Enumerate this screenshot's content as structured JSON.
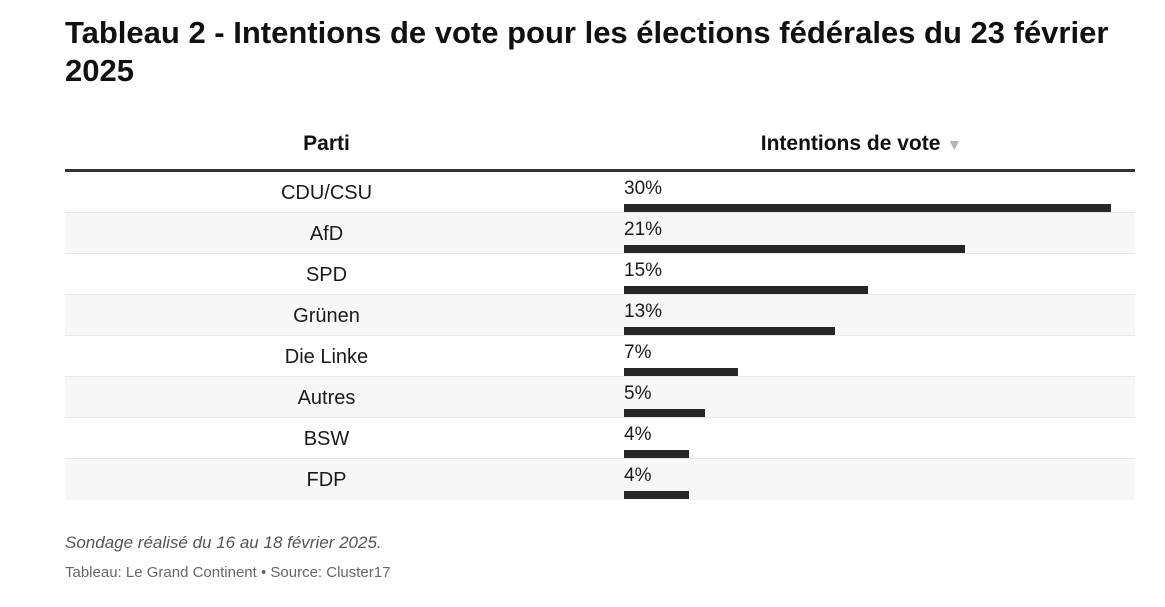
{
  "chart_data": {
    "type": "table",
    "title": "Tableau 2 - Intentions de vote pour les élections fédérales du 23 février 2025",
    "columns": [
      "Parti",
      "Intentions de vote"
    ],
    "sort_icon": "▼",
    "categories": [
      "CDU/CSU",
      "AfD",
      "SPD",
      "Grünen",
      "Die Linke",
      "Autres",
      "BSW",
      "FDP"
    ],
    "values": [
      30,
      21,
      15,
      13,
      7,
      5,
      4,
      4
    ],
    "labels": [
      "30%",
      "21%",
      "15%",
      "13%",
      "7%",
      "5%",
      "4%",
      "4%"
    ],
    "max": 30,
    "bar_color": "#262626"
  },
  "footer": {
    "note": "Sondage réalisé du 16 au 18 février 2025.",
    "source": "Tableau: Le Grand Continent • Source: Cluster17"
  }
}
